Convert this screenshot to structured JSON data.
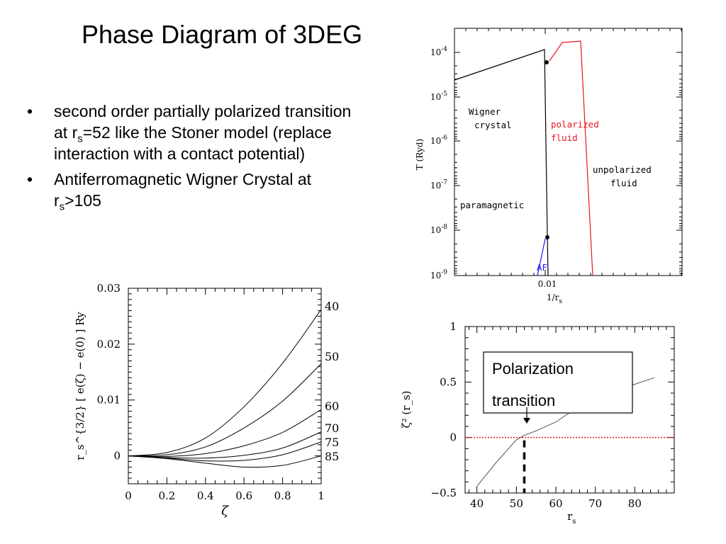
{
  "slide": {
    "title": "Phase Diagram of 3DEG",
    "bullets": [
      {
        "parts": [
          "second order partially polarized transition at r",
          "s",
          "=52 like the  Stoner model (replace interaction with a contact potential)"
        ]
      },
      {
        "parts": [
          "Antiferromagnetic Wigner Crystal at r",
          "s",
          ">105"
        ]
      }
    ]
  },
  "chart_data": [
    {
      "type": "line",
      "panel": "phase-diagram",
      "xlabel": "1/r",
      "xlabel_sub": "s",
      "ylabel": "T (Ryd)",
      "x_ticks": [
        "0.01"
      ],
      "y_ticks": [
        {
          "base": "10",
          "exp": "-4"
        },
        {
          "base": "10",
          "exp": "-5"
        },
        {
          "base": "10",
          "exp": "-6"
        },
        {
          "base": "10",
          "exp": "-7"
        },
        {
          "base": "10",
          "exp": "-8"
        },
        {
          "base": "10",
          "exp": "-9"
        }
      ],
      "ylim_log10": [
        -9,
        -3.6
      ],
      "region_labels": [
        {
          "lines": [
            "Wigner",
            "crystal"
          ],
          "color": "#000000"
        },
        {
          "lines": [
            "polarized",
            "fluid"
          ],
          "color": "#e8141c"
        },
        {
          "lines": [
            "unpolarized",
            "fluid"
          ],
          "color": "#000000"
        },
        {
          "lines": [
            "paramagnetic"
          ],
          "color": "#000000"
        },
        {
          "lines": [
            "AF"
          ],
          "color": "#1a1aff"
        }
      ],
      "colors": {
        "wigner": "#000000",
        "polarized": "#e8141c",
        "af": "#1a1aff"
      }
    },
    {
      "type": "line",
      "panel": "energy-curves",
      "xlabel": "ζ",
      "ylabel": "r_s^{3/2} [ e(ζ) − e(0) ] Ry",
      "xlim": [
        0,
        1
      ],
      "ylim": [
        -0.005,
        0.03
      ],
      "x_ticks": [
        "0",
        "0.2",
        "0.4",
        "0.6",
        "0.8",
        "1"
      ],
      "y_ticks": [
        "0.03",
        "0.02",
        "0.01",
        "0"
      ],
      "series": [
        {
          "name": "40",
          "x": [
            0,
            0.2,
            0.4,
            0.6,
            0.8,
            1.0
          ],
          "values": [
            0,
            0.0006,
            0.0032,
            0.0088,
            0.0166,
            0.0262
          ]
        },
        {
          "name": "50",
          "x": [
            0,
            0.2,
            0.4,
            0.6,
            0.8,
            1.0
          ],
          "values": [
            0,
            0.0002,
            0.0016,
            0.005,
            0.0098,
            0.0165
          ]
        },
        {
          "name": "60",
          "x": [
            0,
            0.2,
            0.4,
            0.6,
            0.8,
            1.0
          ],
          "values": [
            0,
            -0.0001,
            0.0004,
            0.0018,
            0.0042,
            0.0083
          ]
        },
        {
          "name": "70",
          "x": [
            0,
            0.2,
            0.4,
            0.6,
            0.8,
            1.0
          ],
          "values": [
            0,
            -0.0003,
            -0.0004,
            0.0001,
            0.0014,
            0.0043
          ]
        },
        {
          "name": "75",
          "x": [
            0,
            0.2,
            0.4,
            0.6,
            0.8,
            1.0
          ],
          "values": [
            0,
            -0.0004,
            -0.0009,
            -0.0008,
            0.0002,
            0.0025
          ]
        },
        {
          "name": "85",
          "x": [
            0,
            0.2,
            0.4,
            0.6,
            0.8,
            1.0
          ],
          "values": [
            0,
            -0.0005,
            -0.0013,
            -0.002,
            -0.0017,
            0.0
          ]
        }
      ]
    },
    {
      "type": "line",
      "panel": "polarization",
      "xlabel": "r",
      "xlabel_sub": "s",
      "ylabel": "ζ² (r_s)",
      "xlim": [
        37,
        90
      ],
      "ylim": [
        -0.5,
        1
      ],
      "x_ticks": [
        "40",
        "50",
        "60",
        "70",
        "80"
      ],
      "y_ticks": [
        "1",
        "0.5",
        "0",
        "−0.5"
      ],
      "series": [
        {
          "x": [
            40,
            45,
            50,
            52,
            55,
            60,
            65,
            70,
            75,
            80,
            85
          ],
          "values": [
            -0.44,
            -0.22,
            -0.02,
            0.02,
            0.06,
            0.14,
            0.26,
            0.35,
            0.42,
            0.48,
            0.54
          ]
        }
      ],
      "reference_line": {
        "y": 0,
        "color": "#e8141c"
      },
      "transition_rs": 52,
      "annotation": {
        "lines": [
          "Polarization",
          "transition"
        ]
      }
    }
  ]
}
